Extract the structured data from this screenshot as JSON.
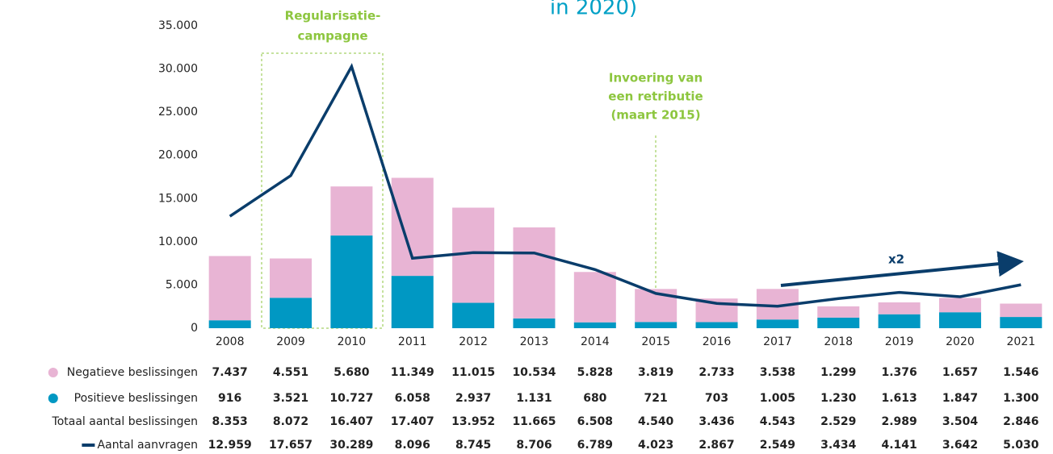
{
  "chart_data": {
    "type": "bar",
    "stacked": true,
    "title": "in 2020)",
    "categories": [
      "2008",
      "2009",
      "2010",
      "2011",
      "2012",
      "2013",
      "2014",
      "2015",
      "2016",
      "2017",
      "2018",
      "2019",
      "2020",
      "2021"
    ],
    "series": [
      {
        "name": "Negatieve beslissingen",
        "color": "#e8b4d4",
        "stack_order": 1,
        "values": [
          7437,
          4551,
          5680,
          11349,
          11015,
          10534,
          5828,
          3819,
          2733,
          3538,
          1299,
          1376,
          1657,
          1546
        ],
        "value_labels": [
          "7.437",
          "4.551",
          "5.680",
          "11.349",
          "11.015",
          "10.534",
          "5.828",
          "3.819",
          "2.733",
          "3.538",
          "1.299",
          "1.376",
          "1.657",
          "1.546"
        ]
      },
      {
        "name": "Positieve beslissingen",
        "color": "#0098c3",
        "stack_order": 0,
        "values": [
          916,
          3521,
          10727,
          6058,
          2937,
          1131,
          680,
          721,
          703,
          1005,
          1230,
          1613,
          1847,
          1300
        ],
        "value_labels": [
          "916",
          "3.521",
          "10.727",
          "6.058",
          "2.937",
          "1.131",
          "680",
          "721",
          "703",
          "1.005",
          "1.230",
          "1.613",
          "1.847",
          "1.300"
        ]
      },
      {
        "name": "Totaal aantal beslissingen",
        "kind": "total",
        "values": [
          8353,
          8072,
          16407,
          17407,
          13952,
          11665,
          6508,
          4540,
          3436,
          4543,
          2529,
          2989,
          3504,
          2846
        ],
        "value_labels": [
          "8.353",
          "8.072",
          "16.407",
          "17.407",
          "13.952",
          "11.665",
          "6.508",
          "4.540",
          "3.436",
          "4.543",
          "2.529",
          "2.989",
          "3.504",
          "2.846"
        ]
      },
      {
        "name": "Aantal aanvragen",
        "color": "#0a3d6b",
        "kind": "line",
        "values": [
          12959,
          17657,
          30289,
          8096,
          8745,
          8706,
          6789,
          4023,
          2867,
          2549,
          3434,
          4141,
          3642,
          5030
        ],
        "value_labels": [
          "12.959",
          "17.657",
          "30.289",
          "8.096",
          "8.745",
          "8.706",
          "6.789",
          "4.023",
          "2.867",
          "2.549",
          "3.434",
          "4.141",
          "3.642",
          "5.030"
        ]
      }
    ],
    "ylim": [
      0,
      35000
    ],
    "yticks": [
      0,
      {
        "value": 5000,
        "label": "5.000"
      },
      {
        "value": 10000,
        "label": "10.000"
      },
      {
        "value": 15000,
        "label": "15.000"
      },
      {
        "value": 20000,
        "label": "20.000"
      },
      {
        "value": 25000,
        "label": "25.000"
      },
      {
        "value": 30000,
        "label": "30.000"
      },
      {
        "value": 35000,
        "label": "35.000"
      }
    ],
    "annotations": [
      {
        "lines": [
          "Regularisatie-",
          "campagne"
        ],
        "color": "#8dc63f"
      },
      {
        "lines": [
          "Invoering van",
          "een retributie",
          "(maart 2015)"
        ],
        "color": "#8dc63f"
      },
      {
        "text": "x2",
        "color": "#0a3d6b"
      }
    ]
  }
}
